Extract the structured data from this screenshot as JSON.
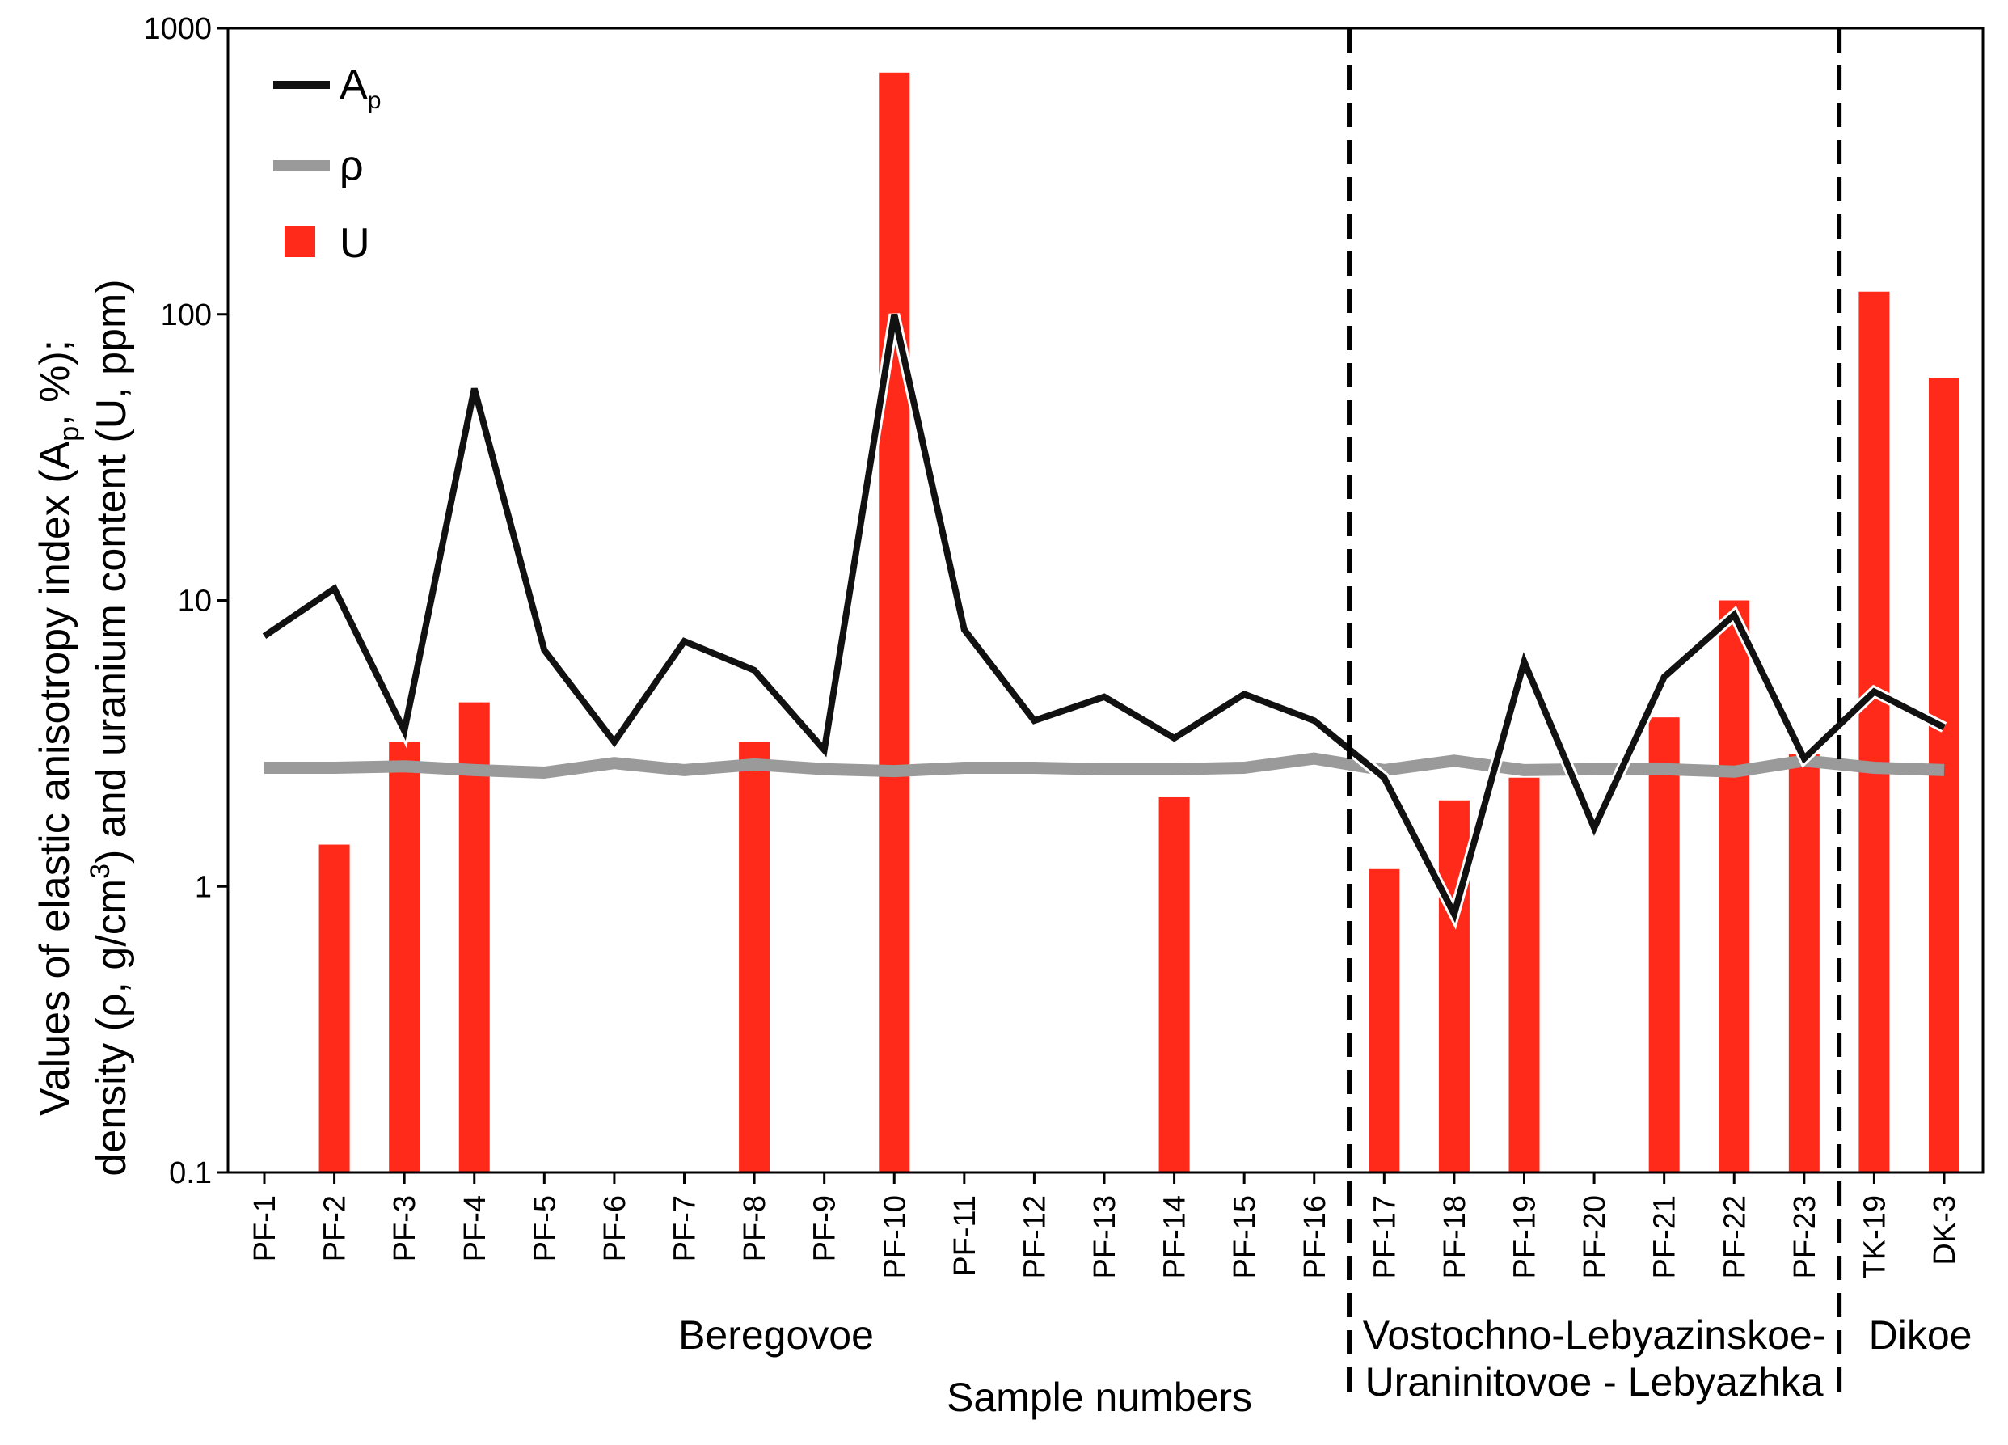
{
  "chart_data": {
    "type": "bar+line",
    "yscale": "log",
    "ylim": [
      0.1,
      1000
    ],
    "yticks": [
      "0.1",
      "1",
      "10",
      "100",
      "1000"
    ],
    "ylabel_line1": "Values of elastic anisotropy index (A",
    "ylabel_line1_sub": "p",
    "ylabel_line1_end": ", %);",
    "ylabel_line2": "density (ρ, g/cm",
    "ylabel_line2_sup": "3",
    "ylabel_line2_end": ") and uranium content (U, ppm)",
    "xlabel": "Sample numbers",
    "categories": [
      "PF-1",
      "PF-2",
      "PF-3",
      "PF-4",
      "PF-5",
      "PF-6",
      "PF-7",
      "PF-8",
      "PF-9",
      "PF-10",
      "PF-11",
      "PF-12",
      "PF-13",
      "PF-14",
      "PF-15",
      "PF-16",
      "PF-17",
      "PF-18",
      "PF-19",
      "PF-20",
      "PF-21",
      "PF-22",
      "PF-23",
      "TK-19",
      "DK-3"
    ],
    "series": [
      {
        "name": "U",
        "kind": "bar",
        "color": "#ff2a1a",
        "values": [
          null,
          1.4,
          3.2,
          4.4,
          null,
          null,
          null,
          3.2,
          null,
          700,
          null,
          null,
          null,
          2.05,
          null,
          null,
          1.15,
          2.0,
          2.4,
          null,
          3.9,
          10.0,
          2.9,
          120,
          60
        ]
      },
      {
        "name": "A",
        "name_sub": "p",
        "kind": "line",
        "color": "#111111",
        "values": [
          7.5,
          11.0,
          3.5,
          55,
          6.7,
          3.2,
          7.2,
          5.7,
          3.0,
          100,
          7.9,
          3.8,
          4.6,
          3.3,
          4.7,
          3.8,
          2.4,
          0.8,
          6.1,
          1.6,
          5.4,
          8.9,
          2.8,
          4.8,
          3.6
        ]
      },
      {
        "name": "ρ",
        "kind": "line",
        "color": "#9a9a9a",
        "values": [
          2.6,
          2.6,
          2.63,
          2.55,
          2.5,
          2.7,
          2.55,
          2.67,
          2.57,
          2.53,
          2.6,
          2.6,
          2.57,
          2.57,
          2.6,
          2.8,
          2.55,
          2.75,
          2.55,
          2.57,
          2.57,
          2.52,
          2.75,
          2.6,
          2.55
        ]
      }
    ],
    "regions": [
      {
        "name_lines": [
          "Beregovoe"
        ],
        "from": "PF-1",
        "to": "PF-16"
      },
      {
        "name_lines": [
          "Vostochno-Lebyazinskoe-",
          "Uraninitovoe - Lebyazhka"
        ],
        "from": "PF-17",
        "to": "PF-23"
      },
      {
        "name_lines": [
          "Dikoe"
        ],
        "from": "TK-19",
        "to": "DK-3"
      }
    ],
    "legend_position": "top-left"
  }
}
